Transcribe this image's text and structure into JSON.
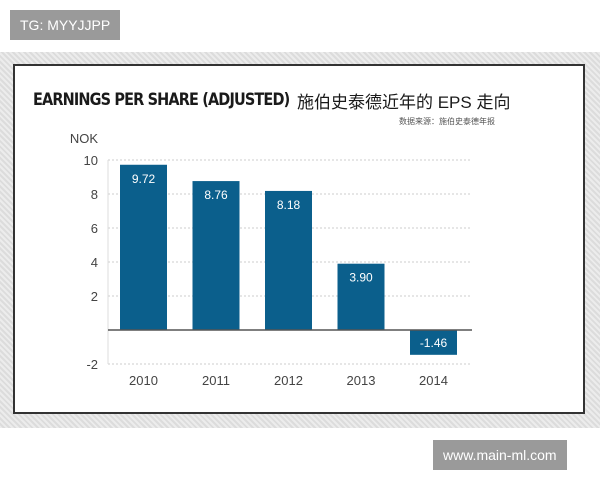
{
  "watermarks": {
    "top_left": "TG: MYYJJPP",
    "bottom_right": "www.main-ml.com"
  },
  "chart_data": {
    "type": "bar",
    "title": "EARNINGS PER SHARE (ADJUSTED)",
    "subtitle": "施伯史泰德近年的 EPS 走向",
    "source": "数据来源：施伯史泰德年报",
    "ylabel": "NOK",
    "xlabel": "",
    "categories": [
      "2010",
      "2011",
      "2012",
      "2013",
      "2014"
    ],
    "values": [
      9.72,
      8.76,
      8.18,
      3.9,
      -1.46
    ],
    "data_labels": [
      "9.72",
      "8.76",
      "8.18",
      "3.90",
      "-1.46"
    ],
    "yticks": [
      10,
      8,
      6,
      4,
      2,
      -2
    ],
    "ylim": [
      -2,
      10
    ],
    "grid": true,
    "bar_color": "#0b5f8c"
  }
}
